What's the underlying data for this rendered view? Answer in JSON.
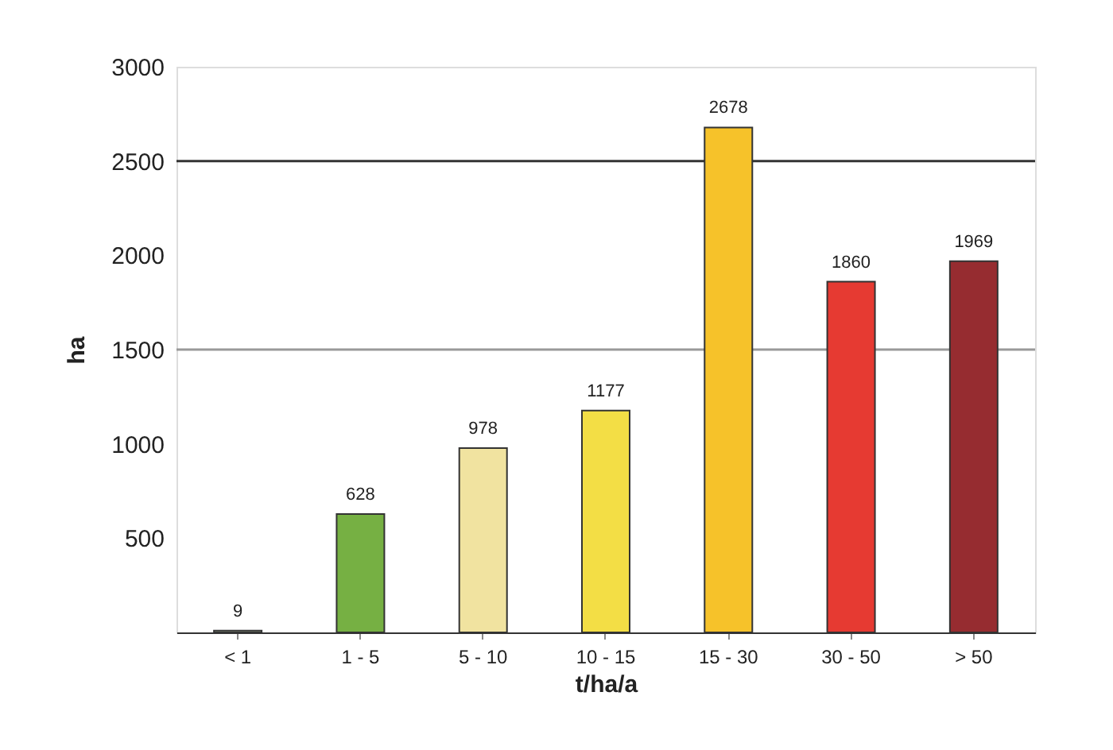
{
  "chart_data": {
    "type": "bar",
    "xlabel": "t/ha/a",
    "ylabel": "ha",
    "categories": [
      "< 1",
      "1 - 5",
      "5 - 10",
      "10 - 15",
      "15 - 30",
      "30 - 50",
      "> 50"
    ],
    "values": [
      9,
      628,
      978,
      1177,
      2678,
      1860,
      1969
    ],
    "colors": [
      "#d8e8c0",
      "#76b043",
      "#f1e3a0",
      "#f3de45",
      "#f6c22a",
      "#e63a32",
      "#962c30"
    ],
    "ylim": [
      0,
      3000
    ],
    "yticks": [
      500,
      1000,
      1500,
      2000,
      2500,
      3000
    ],
    "data_labels": true,
    "grid": false,
    "ref_lines": [
      {
        "axis": "y",
        "value": 1500,
        "label": null,
        "color": "#999999"
      },
      {
        "axis": "y",
        "value": 2500,
        "label": null,
        "color": "#333333"
      }
    ]
  }
}
